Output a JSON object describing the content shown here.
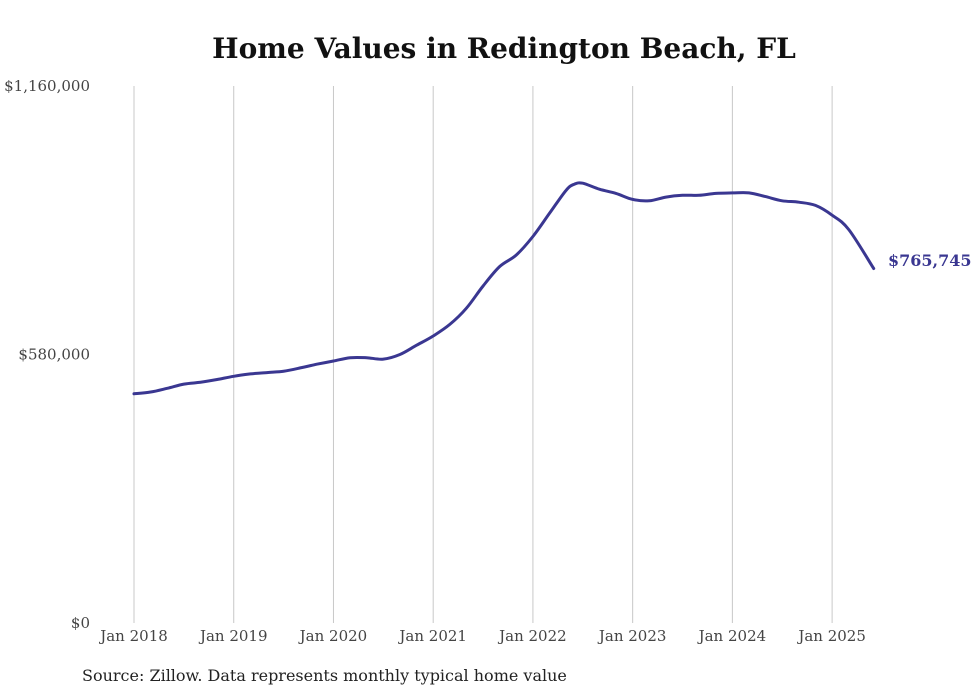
{
  "chart_data": {
    "type": "line",
    "title": "Home Values in Redington Beach, FL",
    "xlabel": "",
    "ylabel": "",
    "ylim": [
      0,
      1160000
    ],
    "y_tick_labels": [
      "$0",
      "$580,000",
      "$1,160,000"
    ],
    "y_tick_values": [
      0,
      580000,
      1160000
    ],
    "x_tick_labels": [
      "Jan 2018",
      "Jan 2019",
      "Jan 2020",
      "Jan 2021",
      "Jan 2022",
      "Jan 2023",
      "Jan 2024",
      "Jan 2025"
    ],
    "x_tick_years": [
      2018,
      2019,
      2020,
      2021,
      2022,
      2023,
      2024,
      2025
    ],
    "xlim": [
      2018,
      2025.42
    ],
    "grid": "vertical",
    "line_color": "#3a3791",
    "series": [
      {
        "points": [
          {
            "x": "2018-01",
            "y": 495000
          },
          {
            "x": "2018-03",
            "y": 499000
          },
          {
            "x": "2018-05",
            "y": 507000
          },
          {
            "x": "2018-07",
            "y": 516000
          },
          {
            "x": "2018-09",
            "y": 520000
          },
          {
            "x": "2018-11",
            "y": 526000
          },
          {
            "x": "2019-01",
            "y": 533000
          },
          {
            "x": "2019-03",
            "y": 538000
          },
          {
            "x": "2019-05",
            "y": 541000
          },
          {
            "x": "2019-07",
            "y": 544000
          },
          {
            "x": "2019-09",
            "y": 551000
          },
          {
            "x": "2019-11",
            "y": 559000
          },
          {
            "x": "2020-01",
            "y": 566000
          },
          {
            "x": "2020-03",
            "y": 573000
          },
          {
            "x": "2020-05",
            "y": 573000
          },
          {
            "x": "2020-07",
            "y": 570000
          },
          {
            "x": "2020-09",
            "y": 580000
          },
          {
            "x": "2020-11",
            "y": 600000
          },
          {
            "x": "2021-01",
            "y": 620000
          },
          {
            "x": "2021-03",
            "y": 645000
          },
          {
            "x": "2021-05",
            "y": 680000
          },
          {
            "x": "2021-07",
            "y": 728000
          },
          {
            "x": "2021-09",
            "y": 770000
          },
          {
            "x": "2021-11",
            "y": 795000
          },
          {
            "x": "2022-01",
            "y": 835000
          },
          {
            "x": "2022-03",
            "y": 885000
          },
          {
            "x": "2022-05",
            "y": 935000
          },
          {
            "x": "2022-06",
            "y": 948000
          },
          {
            "x": "2022-07",
            "y": 950000
          },
          {
            "x": "2022-09",
            "y": 937000
          },
          {
            "x": "2022-11",
            "y": 928000
          },
          {
            "x": "2023-01",
            "y": 915000
          },
          {
            "x": "2023-03",
            "y": 912000
          },
          {
            "x": "2023-05",
            "y": 920000
          },
          {
            "x": "2023-07",
            "y": 924000
          },
          {
            "x": "2023-09",
            "y": 924000
          },
          {
            "x": "2023-11",
            "y": 928000
          },
          {
            "x": "2024-01",
            "y": 929000
          },
          {
            "x": "2024-03",
            "y": 929000
          },
          {
            "x": "2024-05",
            "y": 921000
          },
          {
            "x": "2024-07",
            "y": 912000
          },
          {
            "x": "2024-09",
            "y": 909000
          },
          {
            "x": "2024-11",
            "y": 902000
          },
          {
            "x": "2025-01",
            "y": 881000
          },
          {
            "x": "2025-03",
            "y": 850000
          },
          {
            "x": "2025-06",
            "y": 765745
          }
        ]
      }
    ],
    "end_label": "$765,745"
  },
  "footer": {
    "source_text": "Source: Zillow. Data represents monthly typical home value"
  }
}
